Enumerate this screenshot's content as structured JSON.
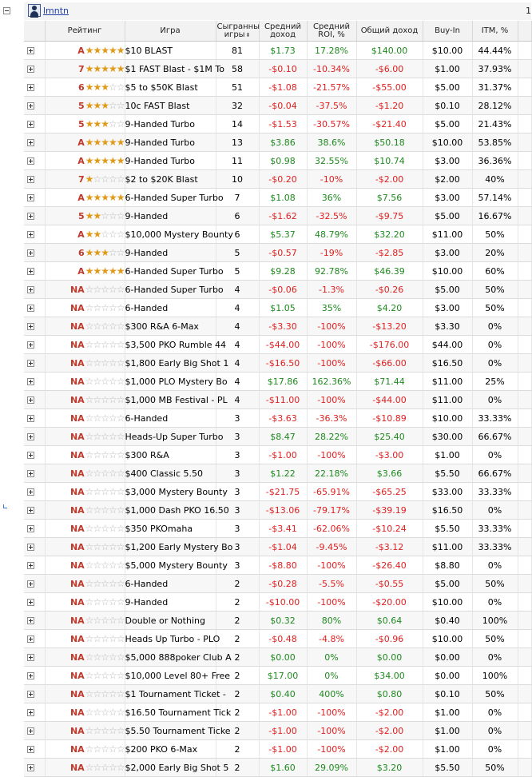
{
  "header": {
    "user_name": "lmntn",
    "right_text": "1"
  },
  "columns": {
    "rating": "Рейтинг",
    "game": "Игра",
    "played": "Сыгранны игры",
    "avg_income": "Средний доход",
    "avg_roi": "Средний ROI, %",
    "total_income": "Общий доход",
    "buyin": "Buy-In",
    "itm": "ITM, %"
  },
  "rows": [
    {
      "letter": "A",
      "stars": 5,
      "game": "$10 BLAST",
      "played": "81",
      "avg": "$1.73",
      "roi": "17.28%",
      "total": "$140.00",
      "buyin": "$10.00",
      "itm": "44.44%"
    },
    {
      "letter": "7",
      "stars": 5,
      "game": "$1 FAST Blast - $1M To",
      "played": "58",
      "avg": "-$0.10",
      "roi": "-10.34%",
      "total": "-$6.00",
      "buyin": "$1.00",
      "itm": "37.93%"
    },
    {
      "letter": "6",
      "stars": 3,
      "game": "$5 to $50K Blast",
      "played": "51",
      "avg": "-$1.08",
      "roi": "-21.57%",
      "total": "-$55.00",
      "buyin": "$5.00",
      "itm": "31.37%"
    },
    {
      "letter": "5",
      "stars": 3,
      "game": "10c FAST Blast",
      "played": "32",
      "avg": "-$0.04",
      "roi": "-37.5%",
      "total": "-$1.20",
      "buyin": "$0.10",
      "itm": "28.12%"
    },
    {
      "letter": "5",
      "stars": 3,
      "game": "9-Handed Turbo",
      "played": "14",
      "avg": "-$1.53",
      "roi": "-30.57%",
      "total": "-$21.40",
      "buyin": "$5.00",
      "itm": "21.43%"
    },
    {
      "letter": "A",
      "stars": 5,
      "game": "9-Handed Turbo",
      "played": "13",
      "avg": "$3.86",
      "roi": "38.6%",
      "total": "$50.18",
      "buyin": "$10.00",
      "itm": "53.85%"
    },
    {
      "letter": "A",
      "stars": 5,
      "game": "9-Handed Turbo",
      "played": "11",
      "avg": "$0.98",
      "roi": "32.55%",
      "total": "$10.74",
      "buyin": "$3.00",
      "itm": "36.36%"
    },
    {
      "letter": "7",
      "stars": 1,
      "game": "$2 to $20K Blast",
      "played": "10",
      "avg": "-$0.20",
      "roi": "-10%",
      "total": "-$2.00",
      "buyin": "$2.00",
      "itm": "40%"
    },
    {
      "letter": "A",
      "stars": 5,
      "game": "6-Handed Super Turbo",
      "played": "7",
      "avg": "$1.08",
      "roi": "36%",
      "total": "$7.56",
      "buyin": "$3.00",
      "itm": "57.14%"
    },
    {
      "letter": "5",
      "stars": 2,
      "game": "9-Handed",
      "played": "6",
      "avg": "-$1.62",
      "roi": "-32.5%",
      "total": "-$9.75",
      "buyin": "$5.00",
      "itm": "16.67%"
    },
    {
      "letter": "A",
      "stars": 2,
      "game": "$10,000 Mystery Bounty",
      "played": "6",
      "avg": "$5.37",
      "roi": "48.79%",
      "total": "$32.20",
      "buyin": "$11.00",
      "itm": "50%"
    },
    {
      "letter": "6",
      "stars": 3,
      "game": "9-Handed",
      "played": "5",
      "avg": "-$0.57",
      "roi": "-19%",
      "total": "-$2.85",
      "buyin": "$3.00",
      "itm": "20%"
    },
    {
      "letter": "A",
      "stars": 5,
      "game": "6-Handed Super Turbo",
      "played": "5",
      "avg": "$9.28",
      "roi": "92.78%",
      "total": "$46.39",
      "buyin": "$10.00",
      "itm": "60%"
    },
    {
      "letter": "NA",
      "stars": 0,
      "game": "6-Handed Super Turbo",
      "played": "4",
      "avg": "-$0.06",
      "roi": "-1.3%",
      "total": "-$0.26",
      "buyin": "$5.00",
      "itm": "50%"
    },
    {
      "letter": "NA",
      "stars": 0,
      "game": "6-Handed",
      "played": "4",
      "avg": "$1.05",
      "roi": "35%",
      "total": "$4.20",
      "buyin": "$3.00",
      "itm": "50%"
    },
    {
      "letter": "NA",
      "stars": 0,
      "game": "$300 R&A 6-Max",
      "played": "4",
      "avg": "-$3.30",
      "roi": "-100%",
      "total": "-$13.20",
      "buyin": "$3.30",
      "itm": "0%"
    },
    {
      "letter": "NA",
      "stars": 0,
      "game": "$3,500 PKO Rumble 44",
      "played": "4",
      "avg": "-$44.00",
      "roi": "-100%",
      "total": "-$176.00",
      "buyin": "$44.00",
      "itm": "0%"
    },
    {
      "letter": "NA",
      "stars": 0,
      "game": "$1,800 Early Big Shot 1",
      "played": "4",
      "avg": "-$16.50",
      "roi": "-100%",
      "total": "-$66.00",
      "buyin": "$16.50",
      "itm": "0%"
    },
    {
      "letter": "NA",
      "stars": 0,
      "game": "$1,000 PLO Mystery Bo",
      "played": "4",
      "avg": "$17.86",
      "roi": "162.36%",
      "total": "$71.44",
      "buyin": "$11.00",
      "itm": "25%"
    },
    {
      "letter": "NA",
      "stars": 0,
      "game": "$1,000 MB Festival - PL",
      "played": "4",
      "avg": "-$11.00",
      "roi": "-100%",
      "total": "-$44.00",
      "buyin": "$11.00",
      "itm": "0%"
    },
    {
      "letter": "NA",
      "stars": 0,
      "game": "6-Handed",
      "played": "3",
      "avg": "-$3.63",
      "roi": "-36.3%",
      "total": "-$10.89",
      "buyin": "$10.00",
      "itm": "33.33%"
    },
    {
      "letter": "NA",
      "stars": 0,
      "game": "Heads-Up Super Turbo",
      "played": "3",
      "avg": "$8.47",
      "roi": "28.22%",
      "total": "$25.40",
      "buyin": "$30.00",
      "itm": "66.67%"
    },
    {
      "letter": "NA",
      "stars": 0,
      "game": "$300 R&A",
      "played": "3",
      "avg": "-$1.00",
      "roi": "-100%",
      "total": "-$3.00",
      "buyin": "$1.00",
      "itm": "0%"
    },
    {
      "letter": "NA",
      "stars": 0,
      "game": "$400 Classic 5.50",
      "played": "3",
      "avg": "$1.22",
      "roi": "22.18%",
      "total": "$3.66",
      "buyin": "$5.50",
      "itm": "66.67%"
    },
    {
      "letter": "NA",
      "stars": 0,
      "game": "$3,000 Mystery Bounty",
      "played": "3",
      "avg": "-$21.75",
      "roi": "-65.91%",
      "total": "-$65.25",
      "buyin": "$33.00",
      "itm": "33.33%"
    },
    {
      "letter": "NA",
      "stars": 0,
      "game": "$1,000 Dash PKO 16.50",
      "played": "3",
      "avg": "-$13.06",
      "roi": "-79.17%",
      "total": "-$39.19",
      "buyin": "$16.50",
      "itm": "0%"
    },
    {
      "letter": "NA",
      "stars": 0,
      "game": "$350 PKOmaha",
      "played": "3",
      "avg": "-$3.41",
      "roi": "-62.06%",
      "total": "-$10.24",
      "buyin": "$5.50",
      "itm": "33.33%"
    },
    {
      "letter": "NA",
      "stars": 0,
      "game": "$1,200 Early Mystery Bo",
      "played": "3",
      "avg": "-$1.04",
      "roi": "-9.45%",
      "total": "-$3.12",
      "buyin": "$11.00",
      "itm": "33.33%"
    },
    {
      "letter": "NA",
      "stars": 0,
      "game": "$5,000 Mystery Bounty",
      "played": "3",
      "avg": "-$8.80",
      "roi": "-100%",
      "total": "-$26.40",
      "buyin": "$8.80",
      "itm": "0%"
    },
    {
      "letter": "NA",
      "stars": 0,
      "game": "6-Handed",
      "played": "2",
      "avg": "-$0.28",
      "roi": "-5.5%",
      "total": "-$0.55",
      "buyin": "$5.00",
      "itm": "50%"
    },
    {
      "letter": "NA",
      "stars": 0,
      "game": "9-Handed",
      "played": "2",
      "avg": "-$10.00",
      "roi": "-100%",
      "total": "-$20.00",
      "buyin": "$10.00",
      "itm": "0%"
    },
    {
      "letter": "NA",
      "stars": 0,
      "game": "Double or Nothing",
      "played": "2",
      "avg": "$0.32",
      "roi": "80%",
      "total": "$0.64",
      "buyin": "$0.40",
      "itm": "100%"
    },
    {
      "letter": "NA",
      "stars": 0,
      "game": "Heads Up Turbo - PLO",
      "played": "2",
      "avg": "-$0.48",
      "roi": "-4.8%",
      "total": "-$0.96",
      "buyin": "$10.00",
      "itm": "50%"
    },
    {
      "letter": "NA",
      "stars": 0,
      "game": "$5,000 888poker Club A",
      "played": "2",
      "avg": "$0.00",
      "roi": "0%",
      "total": "$0.00",
      "buyin": "$0.00",
      "itm": "0%"
    },
    {
      "letter": "NA",
      "stars": 0,
      "game": "$10,000 Level 80+ Free",
      "played": "2",
      "avg": "$17.00",
      "roi": "0%",
      "total": "$34.00",
      "buyin": "$0.00",
      "itm": "100%"
    },
    {
      "letter": "NA",
      "stars": 0,
      "game": "$1 Tournament Ticket -",
      "played": "2",
      "avg": "$0.40",
      "roi": "400%",
      "total": "$0.80",
      "buyin": "$0.10",
      "itm": "50%"
    },
    {
      "letter": "NA",
      "stars": 0,
      "game": "$16.50 Tournament Tick",
      "played": "2",
      "avg": "-$1.00",
      "roi": "-100%",
      "total": "-$2.00",
      "buyin": "$1.00",
      "itm": "0%"
    },
    {
      "letter": "NA",
      "stars": 0,
      "game": "$5.50 Tournament Ticke",
      "played": "2",
      "avg": "-$1.00",
      "roi": "-100%",
      "total": "-$2.00",
      "buyin": "$1.00",
      "itm": "0%"
    },
    {
      "letter": "NA",
      "stars": 0,
      "game": "$200 PKO 6-Max",
      "played": "2",
      "avg": "-$1.00",
      "roi": "-100%",
      "total": "-$2.00",
      "buyin": "$1.00",
      "itm": "0%"
    },
    {
      "letter": "NA",
      "stars": 0,
      "game": "$2,000 Early Big Shot 5",
      "played": "2",
      "avg": "$1.60",
      "roi": "29.09%",
      "total": "$3.20",
      "buyin": "$5.50",
      "itm": "50%"
    }
  ],
  "colors": {
    "positive": "#1e8a1e",
    "negative": "#e02020",
    "rating_letter": "#c0392b",
    "star": "#e09a1a",
    "link": "#1f3fa8"
  },
  "icons": {
    "user": "user-icon",
    "collapse": "collapse-minus-icon",
    "expand": "expand-plus-icon",
    "sort": "sort-icon"
  }
}
